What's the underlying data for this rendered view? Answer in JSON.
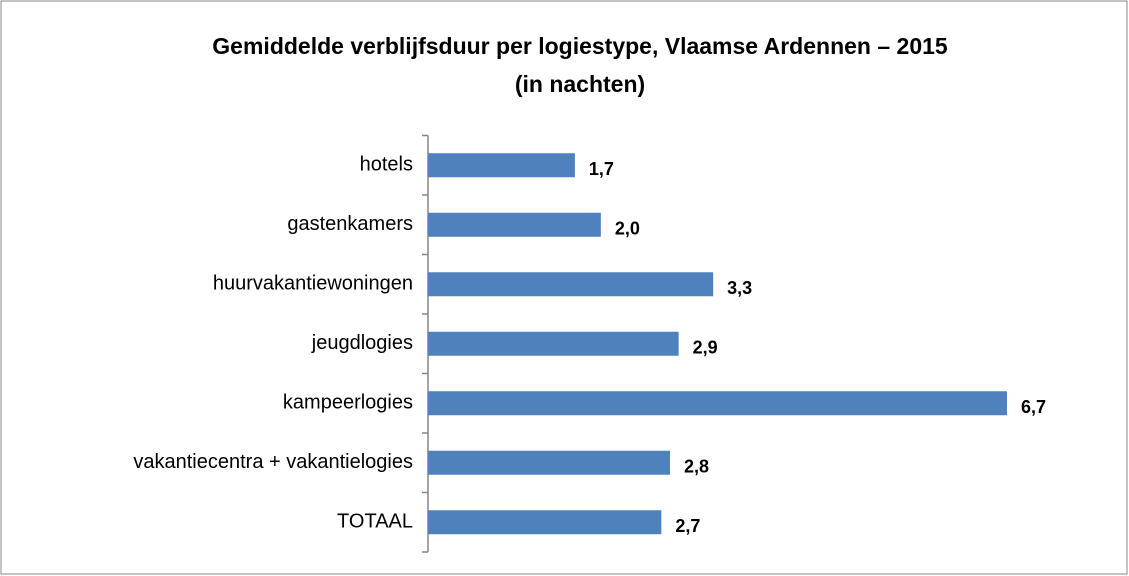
{
  "chart_data": {
    "type": "bar",
    "orientation": "horizontal",
    "title": "Gemiddelde verblijfsduur per logiestype, Vlaamse Ardennen – 2015",
    "subtitle": "(in nachten)",
    "categories": [
      "hotels",
      "gastenkamers",
      "huurvakantiewoningen",
      "jeugdlogies",
      "kampeerlogies",
      "vakantiecentra + vakantielogies",
      "TOTAAL"
    ],
    "values": [
      1.7,
      2.0,
      3.3,
      2.9,
      6.7,
      2.8,
      2.7
    ],
    "value_labels": [
      "1,7",
      "2,0",
      "3,3",
      "2,9",
      "6,7",
      "2,8",
      "2,7"
    ],
    "color": "#4f81bd"
  }
}
